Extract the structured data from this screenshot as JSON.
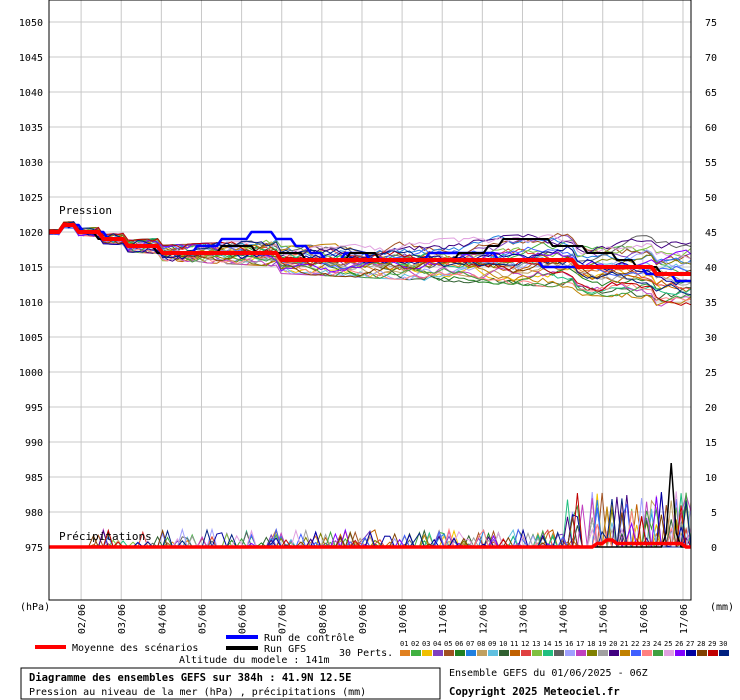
{
  "chart_data": {
    "type": "line",
    "left_axis": {
      "label": "(hPa)",
      "ticks": [
        975,
        980,
        985,
        990,
        995,
        1000,
        1005,
        1010,
        1015,
        1020,
        1025,
        1030,
        1035,
        1040,
        1045,
        1050
      ],
      "range": [
        970,
        1053
      ]
    },
    "right_axis": {
      "label": "(mm)",
      "ticks": [
        0,
        5,
        10,
        15,
        20,
        25,
        30,
        35,
        40,
        45,
        50,
        55,
        60,
        65,
        70,
        75
      ],
      "range": [
        -5,
        78
      ]
    },
    "x_ticks": [
      "02/06",
      "03/06",
      "04/06",
      "05/06",
      "06/06",
      "07/06",
      "08/06",
      "09/06",
      "10/06",
      "11/06",
      "12/06",
      "13/06",
      "14/06",
      "15/06",
      "16/06",
      "17/06"
    ],
    "grid": true,
    "annotations": {
      "pressure": "Pression",
      "precip": "Précipitations"
    },
    "pressure": {
      "control": [
        1020,
        1020,
        1020,
        1021,
        1021,
        1021,
        1021,
        1020,
        1020,
        1020,
        1020,
        1020,
        1019,
        1019,
        1019,
        1019,
        1018,
        1018,
        1018,
        1018,
        1018,
        1018,
        1017,
        1017,
        1017,
        1017,
        1017,
        1017,
        1017,
        1017,
        1018,
        1018,
        1018,
        1018,
        1018,
        1019,
        1019,
        1019,
        1019,
        1019,
        1019,
        1020,
        1020,
        1020,
        1020,
        1020,
        1019,
        1019,
        1019,
        1019,
        1018,
        1018,
        1018,
        1017,
        1017,
        1017,
        1016,
        1016,
        1016,
        1016,
        1017,
        1017,
        1017,
        1017,
        1017,
        1016,
        1016,
        1016,
        1016,
        1016,
        1016,
        1016,
        1016,
        1016,
        1016,
        1016,
        1016,
        1017,
        1017,
        1017,
        1017,
        1017,
        1017,
        1017,
        1017,
        1017,
        1017,
        1017,
        1017,
        1017,
        1017,
        1016,
        1016,
        1016,
        1016,
        1016,
        1016,
        1016,
        1016,
        1016,
        1015,
        1015,
        1015,
        1015,
        1015,
        1015,
        1015,
        1015,
        1015,
        1015,
        1015,
        1015,
        1015,
        1015,
        1015,
        1015,
        1015,
        1015,
        1015,
        1015,
        1015,
        1014,
        1014,
        1014,
        1014,
        1014,
        1014,
        1013,
        1013,
        1013,
        1013
      ],
      "gfs": [
        1020,
        1020,
        1020,
        1021,
        1021,
        1021,
        1020,
        1020,
        1020,
        1020,
        1019,
        1019,
        1019,
        1019,
        1019,
        1019,
        1018,
        1018,
        1018,
        1018,
        1018,
        1018,
        1017,
        1017,
        1017,
        1017,
        1017,
        1017,
        1017,
        1017,
        1017,
        1017,
        1017,
        1017,
        1017,
        1018,
        1018,
        1018,
        1018,
        1018,
        1018,
        1018,
        1017,
        1017,
        1017,
        1017,
        1017,
        1017,
        1017,
        1017,
        1017,
        1017,
        1016,
        1016,
        1016,
        1016,
        1016,
        1016,
        1016,
        1016,
        1016,
        1017,
        1017,
        1017,
        1017,
        1017,
        1017,
        1016,
        1016,
        1016,
        1016,
        1016,
        1016,
        1016,
        1016,
        1016,
        1016,
        1016,
        1016,
        1016,
        1016,
        1016,
        1016,
        1017,
        1017,
        1017,
        1017,
        1017,
        1017,
        1018,
        1018,
        1018,
        1019,
        1019,
        1019,
        1019,
        1019,
        1019,
        1019,
        1019,
        1019,
        1019,
        1018,
        1018,
        1018,
        1018,
        1018,
        1018,
        1018,
        1017,
        1017,
        1017,
        1017,
        1017,
        1017,
        1016,
        1016,
        1016,
        1016,
        1015,
        1015,
        1015,
        1015,
        1015,
        1014,
        1014,
        1014,
        1014,
        1014,
        1014,
        1014
      ],
      "mean": [
        1020,
        1020,
        1020,
        1021,
        1021,
        1021,
        1020,
        1020,
        1020,
        1020,
        1020,
        1019,
        1019,
        1019,
        1019,
        1019,
        1018,
        1018,
        1018,
        1018,
        1018,
        1018,
        1018,
        1017,
        1017,
        1017,
        1017,
        1017,
        1017,
        1017,
        1017,
        1017,
        1017,
        1017,
        1017,
        1017,
        1017,
        1017,
        1017,
        1017,
        1017,
        1017,
        1017,
        1017,
        1017,
        1017,
        1017,
        1016,
        1016,
        1016,
        1016,
        1016,
        1016,
        1016,
        1016,
        1016,
        1016,
        1016,
        1016,
        1016,
        1016,
        1016,
        1016,
        1016,
        1016,
        1016,
        1016,
        1016,
        1016,
        1016,
        1016,
        1016,
        1016,
        1016,
        1016,
        1016,
        1016,
        1016,
        1016,
        1016,
        1016,
        1016,
        1016,
        1016,
        1016,
        1016,
        1016,
        1016,
        1016,
        1016,
        1016,
        1016,
        1016,
        1016,
        1016,
        1016,
        1016,
        1016,
        1016,
        1016,
        1016,
        1016,
        1016,
        1016,
        1016,
        1016,
        1016,
        1015,
        1015,
        1015,
        1015,
        1015,
        1015,
        1015,
        1015,
        1015,
        1015,
        1015,
        1015,
        1015,
        1015,
        1015,
        1015,
        1014,
        1014,
        1014,
        1014,
        1014,
        1014,
        1014,
        1014
      ],
      "members_mean_trend": [
        1020,
        1020,
        1019,
        1019,
        1018,
        1018,
        1018,
        1017,
        1017,
        1017,
        1016,
        1016,
        1016,
        1016,
        1015,
        1015,
        1014
      ]
    },
    "precip_mm": {
      "mean": [
        0,
        0,
        0,
        0,
        0,
        0,
        0,
        0,
        0,
        0,
        0,
        0,
        0,
        0,
        0,
        0,
        0,
        0,
        0,
        0,
        0,
        0,
        0,
        0,
        0,
        0,
        0,
        0,
        0,
        0,
        0,
        0,
        0,
        0,
        0,
        0,
        0,
        0,
        0,
        0,
        0,
        0,
        0,
        0,
        0,
        0,
        0,
        0,
        0,
        0,
        0,
        0,
        0,
        0,
        0,
        0,
        0,
        0,
        0,
        0,
        0,
        0,
        0,
        0,
        0,
        0,
        0,
        0,
        0,
        0,
        0,
        0,
        0,
        0,
        0,
        0,
        0,
        0,
        0,
        0,
        0,
        0,
        0,
        0,
        0,
        0,
        0,
        0,
        0,
        0,
        0,
        0,
        0,
        0,
        0,
        0,
        0,
        0,
        0,
        0,
        0,
        0,
        0,
        0,
        0,
        0,
        0,
        0,
        0,
        0,
        0,
        0.5,
        0.5,
        1,
        1,
        0.5,
        0.5,
        0.5,
        0.5,
        0.5,
        0.5,
        0.5,
        0.5,
        0.5,
        0.5,
        0.5,
        0.5,
        0.5,
        0.5,
        0,
        0
      ],
      "gfs_peak": 12
    },
    "legend": {
      "control": "Run de contrôle",
      "gfs": "Run GFS",
      "mean": "Moyenne des scénarios",
      "perts": "30 Perts.",
      "member_numbers": [
        "01",
        "02",
        "03",
        "04",
        "05",
        "06",
        "07",
        "08",
        "09",
        "10",
        "11",
        "12",
        "13",
        "14",
        "15",
        "16",
        "17",
        "18",
        "19",
        "20",
        "21",
        "22",
        "23",
        "24",
        "25",
        "26",
        "27",
        "28",
        "29",
        "30"
      ]
    }
  },
  "colors": {
    "control": "#0000ff",
    "gfs": "#000000",
    "mean": "#ff0000",
    "grid": "#c8c8c8",
    "members": [
      "#e08020",
      "#40b040",
      "#f0c000",
      "#8040c0",
      "#a05020",
      "#208020",
      "#2080e0",
      "#c0a060",
      "#60c0e0",
      "#306030",
      "#c06000",
      "#e04040",
      "#80c040",
      "#20c080",
      "#606060",
      "#a0a0ff",
      "#c040c0",
      "#808000",
      "#a0a0a0",
      "#400080",
      "#c08000",
      "#4060ff",
      "#ff8080",
      "#40a040",
      "#e0a0e0",
      "#8000ff",
      "#0000a0",
      "#804000",
      "#c00000",
      "#002080"
    ]
  },
  "footer": {
    "altitude": "Altitude du modele : 141m",
    "title": "Diagramme des ensembles GEFS sur 384h : 41.9N 12.5E",
    "subtitle": "Pression au niveau de la mer (hPa) , précipitations (mm)",
    "run": "Ensemble GEFS du 01/06/2025 - 06Z",
    "copyright": "Copyright 2025 Meteociel.fr"
  }
}
